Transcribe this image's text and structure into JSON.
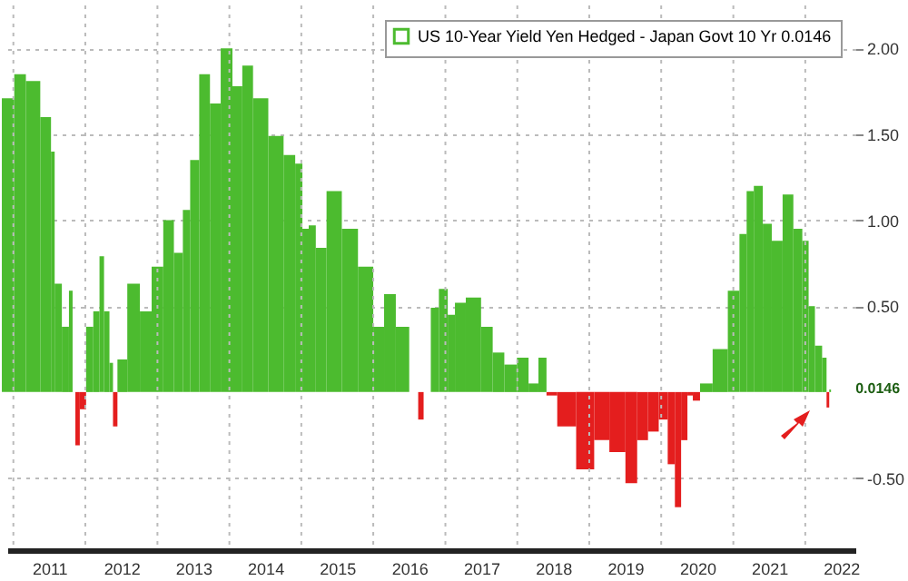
{
  "chart_data": {
    "type": "bar",
    "x": [
      "2010-12-05",
      "2011-02-06",
      "2011-04-02",
      "2011-07-02",
      "2011-07-20",
      "2011-08-08",
      "2011-10-01",
      "2011-10-19",
      "2011-11-07",
      "2011-11-16",
      "2011-12-22",
      "2012-01-19",
      "2012-03-04",
      "2012-03-22",
      "2012-04-19",
      "2012-05-16",
      "2012-05-25",
      "2012-06-30",
      "2012-09-02",
      "2012-11-05",
      "2012-12-30",
      "2013-03-03",
      "2013-04-17",
      "2013-06-02",
      "2013-06-30",
      "2013-09-02",
      "2013-10-17",
      "2013-12-20",
      "2014-02-13",
      "2014-03-30",
      "2014-06-02",
      "2014-09-01",
      "2014-11-04",
      "2014-12-28",
      "2015-01-16",
      "2015-03-02",
      "2015-03-29",
      "2015-06-19",
      "2015-08-31",
      "2015-11-30",
      "2016-02-02",
      "2016-03-19",
      "2016-05-31",
      "2016-08-02",
      "2016-08-30",
      "2016-09-26",
      "2016-11-11",
      "2016-12-17",
      "2017-02-09",
      "2017-02-28",
      "2017-05-30",
      "2017-08-02",
      "2017-09-25",
      "2017-11-28",
      "2018-01-31",
      "2018-03-26",
      "2018-05-11",
      "2018-06-16",
      "2018-08-28",
      "2018-12-25",
      "2019-02-27",
      "2019-05-28",
      "2019-08-09",
      "2019-09-24",
      "2019-11-27",
      "2020-01-11",
      "2020-02-26",
      "2020-03-24",
      "2020-04-29",
      "2020-05-27",
      "2020-06-23",
      "2020-08-08",
      "2020-10-29",
      "2021-01-09",
      "2021-02-24",
      "2021-03-23",
      "2021-05-08",
      "2021-06-22",
      "2021-08-07",
      "2021-10-10",
      "2021-11-24",
      "2022-01-09",
      "2022-01-27",
      "2022-03-14",
      "2022-04-10",
      "2022-04-28",
      "2022-05-07"
    ],
    "series": [
      {
        "name": "US 10-Year Yield Yen Hedged - Japan Govt 10 Yr 0.0146",
        "color": "#4cbb2f",
        "values": [
          1.71,
          1.85,
          1.81,
          1.6,
          1.4,
          0.63,
          0.38,
          0.59,
          0.0,
          -0.31,
          -0.1,
          0.38,
          0.47,
          0.79,
          0.47,
          0.17,
          -0.2,
          0.19,
          0.63,
          0.47,
          0.73,
          1.0,
          0.81,
          1.06,
          1.35,
          1.85,
          1.68,
          2.0,
          1.78,
          1.9,
          1.71,
          1.49,
          1.38,
          1.33,
          0.95,
          0.97,
          0.84,
          1.17,
          0.95,
          0.73,
          0.38,
          0.57,
          0.38,
          0.0,
          -0.16,
          0.0,
          0.49,
          0.6,
          0.45,
          0.52,
          0.55,
          0.38,
          0.23,
          0.16,
          0.2,
          0.05,
          0.2,
          -0.02,
          -0.2,
          -0.45,
          -0.28,
          -0.35,
          -0.53,
          -0.28,
          -0.23,
          -0.16,
          -0.42,
          -0.67,
          -0.28,
          -0.02,
          -0.05,
          0.05,
          0.25,
          0.59,
          0.92,
          1.17,
          1.2,
          0.98,
          0.88,
          1.15,
          0.95,
          0.88,
          0.5,
          0.27,
          0.2,
          -0.09,
          0.0146
        ],
        "colors": [
          "#4cbb2f",
          "#4cbb2f",
          "#4cbb2f",
          "#4cbb2f",
          "#4cbb2f",
          "#4cbb2f",
          "#4cbb2f",
          "#4cbb2f",
          "#4cbb2f",
          "#e41e1e",
          "#e41e1e",
          "#4cbb2f",
          "#4cbb2f",
          "#4cbb2f",
          "#4cbb2f",
          "#4cbb2f",
          "#e41e1e",
          "#4cbb2f",
          "#4cbb2f",
          "#4cbb2f",
          "#4cbb2f",
          "#4cbb2f",
          "#4cbb2f",
          "#4cbb2f",
          "#4cbb2f",
          "#4cbb2f",
          "#4cbb2f",
          "#4cbb2f",
          "#4cbb2f",
          "#4cbb2f",
          "#4cbb2f",
          "#4cbb2f",
          "#4cbb2f",
          "#4cbb2f",
          "#4cbb2f",
          "#4cbb2f",
          "#4cbb2f",
          "#4cbb2f",
          "#4cbb2f",
          "#4cbb2f",
          "#4cbb2f",
          "#4cbb2f",
          "#4cbb2f",
          "#4cbb2f",
          "#e41e1e",
          "#4cbb2f",
          "#4cbb2f",
          "#4cbb2f",
          "#4cbb2f",
          "#4cbb2f",
          "#4cbb2f",
          "#4cbb2f",
          "#4cbb2f",
          "#4cbb2f",
          "#4cbb2f",
          "#4cbb2f",
          "#4cbb2f",
          "#e41e1e",
          "#e41e1e",
          "#e41e1e",
          "#e41e1e",
          "#e41e1e",
          "#e41e1e",
          "#e41e1e",
          "#e41e1e",
          "#e41e1e",
          "#e41e1e",
          "#e41e1e",
          "#e41e1e",
          "#e41e1e",
          "#e41e1e",
          "#4cbb2f",
          "#4cbb2f",
          "#4cbb2f",
          "#4cbb2f",
          "#4cbb2f",
          "#4cbb2f",
          "#4cbb2f",
          "#4cbb2f",
          "#4cbb2f",
          "#4cbb2f",
          "#4cbb2f",
          "#4cbb2f",
          "#4cbb2f",
          "#4cbb2f",
          "#e41e1e",
          "#4cbb2f"
        ]
      }
    ],
    "xlim": [
      "2010-12-01",
      "2022-09-12"
    ],
    "xticks": [
      {
        "value": "2011-01-01",
        "label": null
      },
      {
        "value": "2011-07-02",
        "label": "2011"
      },
      {
        "value": "2012-01-01",
        "label": null
      },
      {
        "value": "2012-07-02",
        "label": "2012"
      },
      {
        "value": "2013-01-01",
        "label": null
      },
      {
        "value": "2013-07-02",
        "label": "2013"
      },
      {
        "value": "2014-01-01",
        "label": null
      },
      {
        "value": "2014-07-02",
        "label": "2014"
      },
      {
        "value": "2015-01-01",
        "label": null
      },
      {
        "value": "2015-07-02",
        "label": "2015"
      },
      {
        "value": "2016-01-01",
        "label": null
      },
      {
        "value": "2016-07-02",
        "label": "2016"
      },
      {
        "value": "2017-01-01",
        "label": null
      },
      {
        "value": "2017-07-02",
        "label": "2017"
      },
      {
        "value": "2018-01-01",
        "label": null
      },
      {
        "value": "2018-07-02",
        "label": "2018"
      },
      {
        "value": "2019-01-01",
        "label": null
      },
      {
        "value": "2019-07-02",
        "label": "2019"
      },
      {
        "value": "2020-01-01",
        "label": null
      },
      {
        "value": "2020-07-02",
        "label": "2020"
      },
      {
        "value": "2021-01-01",
        "label": null
      },
      {
        "value": "2021-07-02",
        "label": "2021"
      },
      {
        "value": "2022-01-01",
        "label": null
      },
      {
        "value": "2022-07-02",
        "label": "2022"
      }
    ],
    "ylim": [
      -0.92,
      2.25
    ],
    "yticks": [
      {
        "value": -0.5,
        "label": "-0.50"
      },
      {
        "value": 0.5,
        "label": "0.50"
      },
      {
        "value": 1,
        "label": "1.00"
      },
      {
        "value": 1.5,
        "label": "1.50"
      },
      {
        "value": 2,
        "label": "2.00"
      }
    ],
    "annotations": [
      {
        "text": "0.0146",
        "x": "2022-05-07",
        "y": 0.0146
      }
    ],
    "grid": true,
    "legend": "top right"
  }
}
